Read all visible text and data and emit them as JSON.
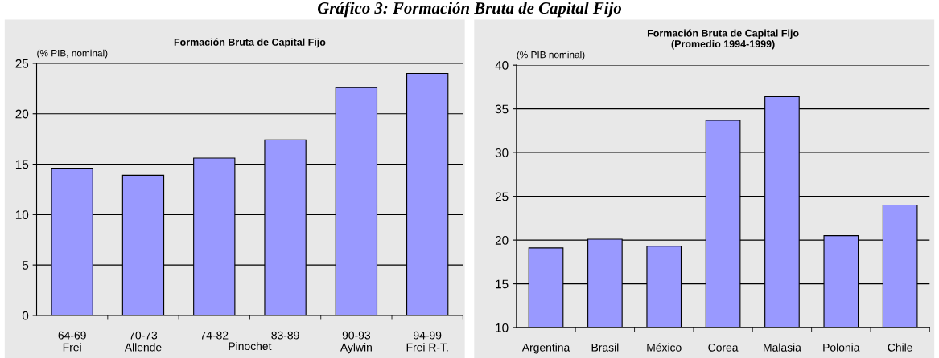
{
  "chart_data": [
    {
      "type": "bar",
      "title": "Formación Bruta de Capital Fijo",
      "ylabel": "(% PIB, nominal)",
      "categories": [
        "64-69\nFrei",
        "70-73\nAllende",
        "74-82",
        "83-89",
        "90-93\nAylwin",
        "94-99\nFrei R-T."
      ],
      "values": [
        14.6,
        13.9,
        15.6,
        17.4,
        22.6,
        24.0
      ],
      "color": "#9999ff",
      "ylim": [
        0,
        25
      ],
      "yticks": [
        0,
        5,
        10,
        15,
        20,
        25
      ],
      "grid": "y",
      "annotations": [
        "Gráfico 3: Formación Bruta de Capital Fijo",
        "Pinochet"
      ]
    },
    {
      "type": "bar",
      "title": "Formación Bruta de Capital Fijo\n(Promedio 1994-1999)",
      "ylabel": "(% PIB nominal)",
      "categories": [
        "Argentina",
        "Brasil",
        "México",
        "Corea",
        "Malasia",
        "Polonia",
        "Chile"
      ],
      "values": [
        19.1,
        20.1,
        19.3,
        33.7,
        36.4,
        20.5,
        24.0
      ],
      "color": "#9999ff",
      "ylim": [
        10,
        40
      ],
      "yticks": [
        10,
        15,
        20,
        25,
        30,
        35,
        40
      ],
      "grid": "y"
    }
  ]
}
